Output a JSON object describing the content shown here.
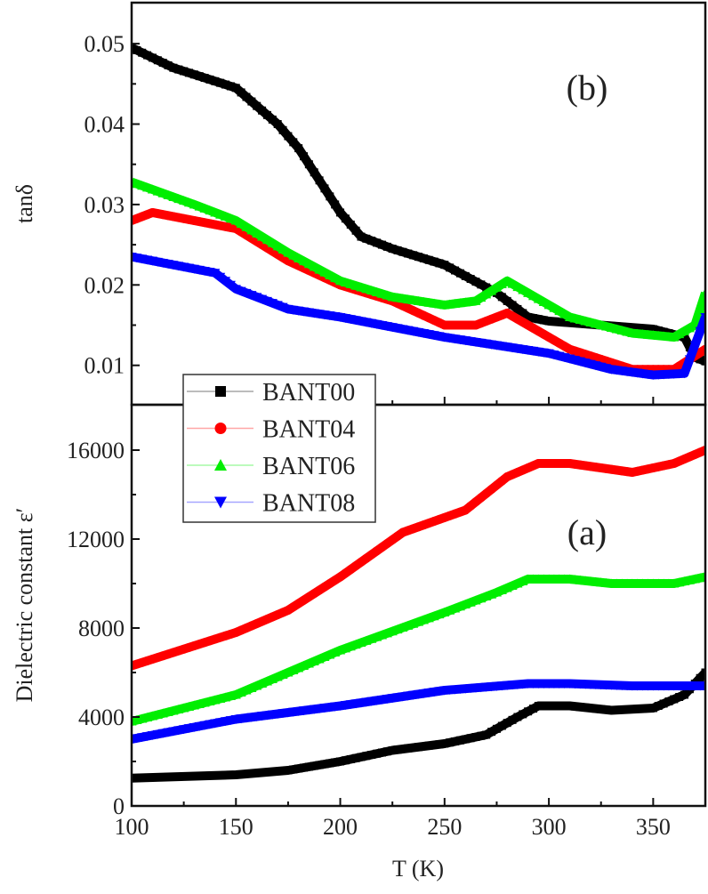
{
  "chart_data": [
    {
      "type": "line",
      "panel_label": "(b)",
      "ylabel": "tanδ",
      "xlabel": "T (K)",
      "xlim": [
        100,
        375
      ],
      "ylim": [
        0.0051,
        0.0551
      ],
      "yticks": [
        "0.01",
        "0.02",
        "0.03",
        "0.04",
        "0.05"
      ],
      "ytick_values": [
        0.01,
        0.02,
        0.03,
        0.04,
        0.05
      ],
      "series": [
        {
          "name": "BANT00",
          "color": "#000000",
          "marker": "square",
          "x": [
            100,
            120,
            150,
            170,
            180,
            190,
            200,
            210,
            225,
            250,
            275,
            290,
            300,
            325,
            350,
            365,
            370,
            375
          ],
          "y": [
            0.0495,
            0.047,
            0.0445,
            0.04,
            0.037,
            0.033,
            0.029,
            0.026,
            0.0245,
            0.0225,
            0.019,
            0.016,
            0.0155,
            0.015,
            0.0145,
            0.0135,
            0.011,
            0.0105
          ]
        },
        {
          "name": "BANT04",
          "color": "#ff0000",
          "marker": "circle",
          "x": [
            100,
            110,
            150,
            175,
            200,
            225,
            250,
            265,
            280,
            290,
            310,
            340,
            360,
            375
          ],
          "y": [
            0.028,
            0.029,
            0.027,
            0.023,
            0.02,
            0.018,
            0.015,
            0.015,
            0.0165,
            0.015,
            0.012,
            0.0095,
            0.0095,
            0.012
          ]
        },
        {
          "name": "BANT06",
          "color": "#00ee00",
          "marker": "triangle-up",
          "x": [
            100,
            130,
            150,
            175,
            200,
            225,
            250,
            265,
            280,
            290,
            310,
            340,
            360,
            370,
            375
          ],
          "y": [
            0.0328,
            0.03,
            0.028,
            0.024,
            0.0205,
            0.0185,
            0.0175,
            0.018,
            0.0205,
            0.019,
            0.016,
            0.014,
            0.0135,
            0.015,
            0.019
          ]
        },
        {
          "name": "BANT08",
          "color": "#0000ff",
          "marker": "triangle-down",
          "x": [
            100,
            130,
            140,
            150,
            175,
            200,
            250,
            275,
            300,
            330,
            350,
            365,
            375
          ],
          "y": [
            0.0235,
            0.022,
            0.0215,
            0.0195,
            0.017,
            0.016,
            0.0135,
            0.0125,
            0.0115,
            0.0095,
            0.0088,
            0.009,
            0.016
          ]
        }
      ]
    },
    {
      "type": "line",
      "panel_label": "(a)",
      "ylabel": "Dielectric constant ε′",
      "xlabel": "T (K)",
      "xlim": [
        100,
        375
      ],
      "ylim": [
        0,
        18040
      ],
      "yticks": [
        "0",
        "4000",
        "8000",
        "12000",
        "16000"
      ],
      "ytick_values": [
        0,
        4000,
        8000,
        12000,
        16000
      ],
      "xticks": [
        "100",
        "150",
        "200",
        "250",
        "300",
        "350"
      ],
      "xtick_values": [
        100,
        150,
        200,
        250,
        300,
        350
      ],
      "legend": [
        "BANT00",
        "BANT04",
        "BANT06",
        "BANT08"
      ],
      "legend_placement": "top-left",
      "series": [
        {
          "name": "BANT00",
          "color": "#000000",
          "marker": "square",
          "x": [
            100,
            150,
            175,
            200,
            225,
            250,
            270,
            285,
            295,
            310,
            330,
            350,
            365,
            375
          ],
          "y": [
            1250,
            1400,
            1600,
            2000,
            2500,
            2800,
            3200,
            4000,
            4500,
            4500,
            4300,
            4400,
            5000,
            6000
          ]
        },
        {
          "name": "BANT04",
          "color": "#ff0000",
          "marker": "circle",
          "x": [
            100,
            150,
            175,
            200,
            230,
            260,
            280,
            295,
            310,
            340,
            360,
            375
          ],
          "y": [
            6300,
            7800,
            8800,
            10300,
            12300,
            13300,
            14800,
            15400,
            15400,
            15000,
            15400,
            16000
          ]
        },
        {
          "name": "BANT06",
          "color": "#00ee00",
          "marker": "triangle-up",
          "x": [
            100,
            150,
            175,
            200,
            250,
            275,
            290,
            310,
            330,
            360,
            375
          ],
          "y": [
            3800,
            5000,
            6000,
            7000,
            8700,
            9600,
            10200,
            10200,
            10000,
            10000,
            10300
          ]
        },
        {
          "name": "BANT08",
          "color": "#0000ff",
          "marker": "triangle-down",
          "x": [
            100,
            150,
            200,
            250,
            290,
            310,
            340,
            375
          ],
          "y": [
            3000,
            3900,
            4500,
            5200,
            5500,
            5500,
            5400,
            5400
          ]
        }
      ]
    }
  ]
}
